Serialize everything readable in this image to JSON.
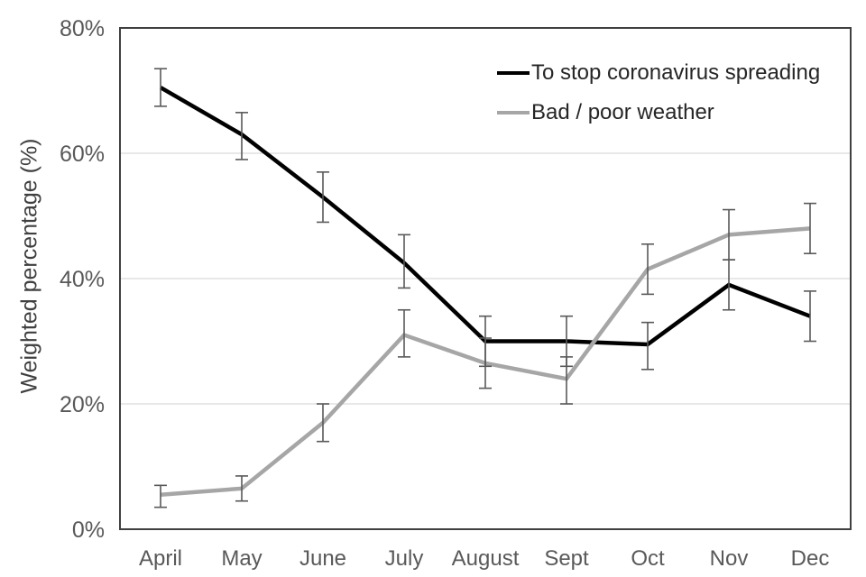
{
  "chart_data": {
    "type": "line",
    "title": "",
    "xlabel": "",
    "ylabel": "Weighted percentage (%)",
    "categories": [
      "April",
      "May",
      "June",
      "July",
      "August",
      "Sept",
      "Oct",
      "Nov",
      "Dec"
    ],
    "y_ticks": [
      "0%",
      "20%",
      "40%",
      "60%",
      "80%"
    ],
    "y_tick_values": [
      0,
      20,
      40,
      60,
      80
    ],
    "ylim": [
      0,
      80
    ],
    "grid": "horizontal-only",
    "legend_position": "inside-top-right",
    "series": [
      {
        "name": "To stop coronavirus spreading",
        "color": "#000000",
        "values": [
          70.5,
          63,
          53,
          42.5,
          30,
          30,
          29.5,
          39,
          34
        ],
        "error_low": [
          67.5,
          59,
          49,
          38.5,
          26,
          26,
          25.5,
          35,
          30
        ],
        "error_high": [
          73.5,
          66.5,
          57,
          47,
          34,
          34,
          33,
          43,
          38
        ]
      },
      {
        "name": "Bad / poor weather",
        "color": "#A6A6A6",
        "values": [
          5.5,
          6.5,
          17,
          31,
          26.5,
          24,
          41.5,
          47,
          48
        ],
        "error_low": [
          3.5,
          4.5,
          14,
          27.5,
          22.5,
          20,
          37.5,
          43,
          44
        ],
        "error_high": [
          7,
          8.5,
          20,
          35,
          30.5,
          27.5,
          45.5,
          51,
          52
        ]
      }
    ],
    "colors": {
      "error_bar": "#595959",
      "axis_frame": "#404040",
      "gridline": "#D9D9D9",
      "tick_label": "#595959"
    }
  }
}
